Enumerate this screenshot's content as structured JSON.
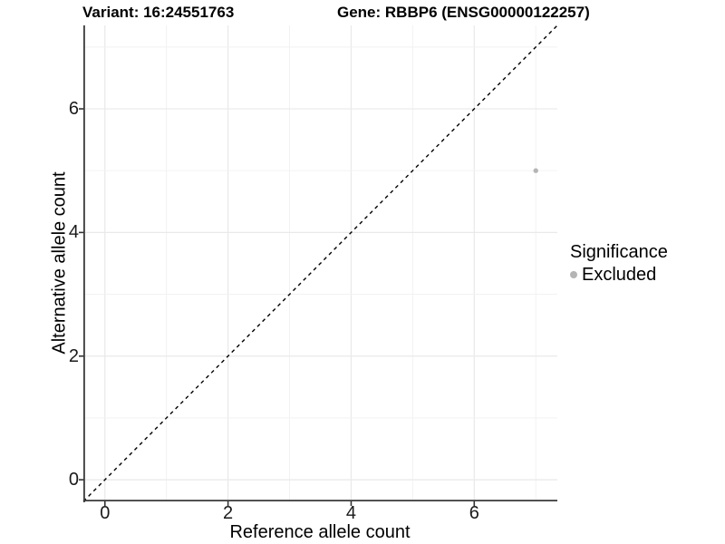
{
  "titles": {
    "left": "Variant: 16:24551763",
    "right": "Gene: RBBP6 (ENSG00000122257)"
  },
  "chart_data": {
    "type": "scatter",
    "title_left": "Variant: 16:24551763",
    "title_right": "Gene: RBBP6 (ENSG00000122257)",
    "xlabel": "Reference allele count",
    "ylabel": "Alternative allele count",
    "xlim": [
      -0.35,
      7.35
    ],
    "ylim": [
      -0.35,
      7.35
    ],
    "x_ticks": [
      0,
      2,
      4,
      6
    ],
    "y_ticks": [
      0,
      2,
      4,
      6
    ],
    "grid_lines_every": 1,
    "grid": true,
    "legend_position": "right",
    "series": [
      {
        "name": "Excluded",
        "color": "#b5b5b5",
        "points": [
          {
            "x": 7,
            "y": 5
          }
        ]
      }
    ],
    "reference_line": {
      "type": "identity",
      "style": "dashed",
      "color": "#000000"
    }
  },
  "axes": {
    "x_title": "Reference allele count",
    "y_title": "Alternative allele count"
  },
  "legend": {
    "title": "Significance",
    "items": [
      {
        "label": "Excluded",
        "color": "#b5b5b5"
      }
    ]
  },
  "colors": {
    "background": "#ffffff",
    "grid_major": "#e9e9e9",
    "grid_minor": "#f1f1f1",
    "axis_line": "#3a3a3a",
    "tick_mark": "#333333",
    "text": "#000000",
    "point": "#b5b5b5",
    "reference_line": "#000000"
  }
}
